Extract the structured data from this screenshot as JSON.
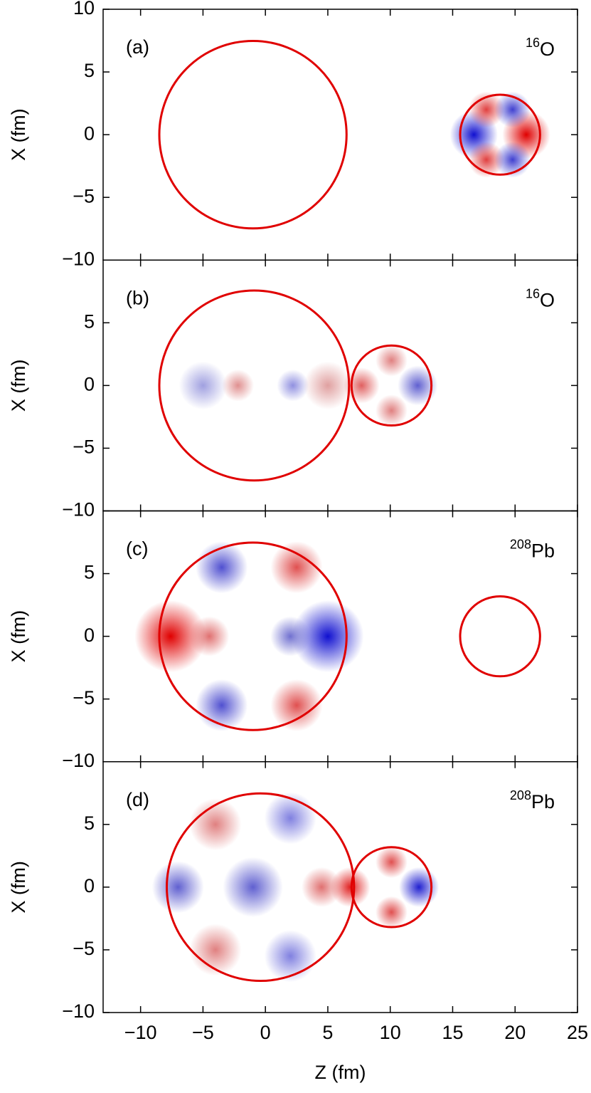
{
  "chart_data": [
    {
      "type": "density",
      "xlim": [
        -13,
        25
      ],
      "ylim": [
        -10,
        10
      ],
      "ylabel": "X (fm)",
      "panel_label": "(a)",
      "nucleus": {
        "mass": "16",
        "symbol": "O"
      },
      "yticks": [
        {
          "value": 10,
          "label": "10"
        },
        {
          "value": 5,
          "label": "5"
        },
        {
          "value": 0,
          "label": "0"
        },
        {
          "value": -5,
          "label": "−5"
        },
        {
          "value": -10,
          "label": "−10"
        }
      ],
      "circles": [
        {
          "z": -1,
          "x": 0,
          "r": 7.5
        },
        {
          "z": 18.8,
          "x": 0,
          "r": 3.2
        }
      ],
      "spots": [
        {
          "z": 16.7,
          "x": 0,
          "r": 1.2,
          "color": "#1010d0"
        },
        {
          "z": 20.9,
          "x": 0,
          "r": 1.2,
          "color": "#e00000"
        },
        {
          "z": 17.7,
          "x": 2,
          "r": 0.9,
          "color": "#e04040"
        },
        {
          "z": 19.8,
          "x": 2,
          "r": 0.9,
          "color": "#4040d0"
        },
        {
          "z": 17.7,
          "x": -2,
          "r": 0.9,
          "color": "#e04040"
        },
        {
          "z": 19.8,
          "x": -2,
          "r": 0.9,
          "color": "#4040d0"
        }
      ]
    },
    {
      "type": "density",
      "xlim": [
        -13,
        25
      ],
      "ylim": [
        -10,
        10
      ],
      "ylabel": "X (fm)",
      "panel_label": "(b)",
      "nucleus": {
        "mass": "16",
        "symbol": "O"
      },
      "yticks": [
        {
          "value": 5,
          "label": "5"
        },
        {
          "value": 0,
          "label": "0"
        },
        {
          "value": -5,
          "label": "−5"
        },
        {
          "value": -10,
          "label": "−10"
        }
      ],
      "circles": [
        {
          "z": -0.9,
          "x": 0,
          "r": 7.6
        },
        {
          "z": 10.1,
          "x": 0,
          "r": 3.2
        }
      ],
      "spots": [
        {
          "z": 7.7,
          "x": 0,
          "r": 0.9,
          "color": "#e06060"
        },
        {
          "z": 12.2,
          "x": 0,
          "r": 1,
          "color": "#6060d0"
        },
        {
          "z": 10.1,
          "x": 2,
          "r": 0.8,
          "color": "#e08080"
        },
        {
          "z": 10.1,
          "x": -2,
          "r": 0.8,
          "color": "#e08080"
        },
        {
          "z": -2.2,
          "x": 0,
          "r": 0.8,
          "color": "#e09090"
        },
        {
          "z": 2.2,
          "x": 0,
          "r": 0.8,
          "color": "#9090e0"
        },
        {
          "z": -5,
          "x": 0,
          "r": 1.2,
          "color": "#a0a0e0"
        },
        {
          "z": 5,
          "x": 0,
          "r": 1.2,
          "color": "#e0a0a0"
        }
      ]
    },
    {
      "type": "density",
      "xlim": [
        -13,
        25
      ],
      "ylim": [
        -10,
        10
      ],
      "ylabel": "X (fm)",
      "panel_label": "(c)",
      "nucleus": {
        "mass": "208",
        "symbol": "Pb"
      },
      "yticks": [
        {
          "value": 5,
          "label": "5"
        },
        {
          "value": 0,
          "label": "0"
        },
        {
          "value": -5,
          "label": "−5"
        },
        {
          "value": -10,
          "label": "−10"
        }
      ],
      "circles": [
        {
          "z": -1,
          "x": 0,
          "r": 7.5
        },
        {
          "z": 18.8,
          "x": 0,
          "r": 3.2
        }
      ],
      "spots": [
        {
          "z": -7.6,
          "x": 0,
          "r": 1.8,
          "color": "#e00000"
        },
        {
          "z": 5,
          "x": 0,
          "r": 1.8,
          "color": "#1010d0"
        },
        {
          "z": -3.5,
          "x": 5.5,
          "r": 1.3,
          "color": "#5050d0"
        },
        {
          "z": 2.5,
          "x": 5.5,
          "r": 1.3,
          "color": "#e05050"
        },
        {
          "z": -3.5,
          "x": -5.5,
          "r": 1.3,
          "color": "#5050d0"
        },
        {
          "z": 2.5,
          "x": -5.5,
          "r": 1.3,
          "color": "#e05050"
        },
        {
          "z": -4.5,
          "x": 0,
          "r": 1,
          "color": "#e07070"
        },
        {
          "z": 2,
          "x": 0,
          "r": 1,
          "color": "#7070d0"
        }
      ]
    },
    {
      "type": "density",
      "xlim": [
        -13,
        25
      ],
      "ylim": [
        -10,
        10
      ],
      "ylabel": "X (fm)",
      "xlabel": "Z (fm)",
      "panel_label": "(d)",
      "nucleus": {
        "mass": "208",
        "symbol": "Pb"
      },
      "xticks": [
        {
          "value": -10,
          "label": "−10"
        },
        {
          "value": -5,
          "label": "−5"
        },
        0,
        5,
        10,
        15,
        20,
        25
      ],
      "yticks": [
        {
          "value": 5,
          "label": "5"
        },
        {
          "value": 0,
          "label": "0"
        },
        {
          "value": -5,
          "label": "−5"
        },
        {
          "value": -10,
          "label": "−10"
        }
      ],
      "circles": [
        {
          "z": -0.4,
          "x": 0,
          "r": 7.5
        },
        {
          "z": 10.1,
          "x": 0,
          "r": 3.2
        }
      ],
      "spots": [
        {
          "z": 6.8,
          "x": 0,
          "r": 1,
          "color": "#e02020"
        },
        {
          "z": 12.3,
          "x": 0,
          "r": 1,
          "color": "#2020d0"
        },
        {
          "z": 10.1,
          "x": 2,
          "r": 0.8,
          "color": "#e05050"
        },
        {
          "z": 10.1,
          "x": -2,
          "r": 0.8,
          "color": "#e05050"
        },
        {
          "z": -7,
          "x": 0,
          "r": 1.3,
          "color": "#6060d0"
        },
        {
          "z": -1,
          "x": 0,
          "r": 1.5,
          "color": "#6060d0"
        },
        {
          "z": 2,
          "x": 5.5,
          "r": 1.3,
          "color": "#8080e0"
        },
        {
          "z": -4,
          "x": 5,
          "r": 1.3,
          "color": "#e08080"
        },
        {
          "z": 2,
          "x": -5.5,
          "r": 1.3,
          "color": "#8080e0"
        },
        {
          "z": -4,
          "x": -5,
          "r": 1.3,
          "color": "#e08080"
        },
        {
          "z": 4.5,
          "x": 0,
          "r": 1,
          "color": "#e07070"
        }
      ]
    }
  ]
}
